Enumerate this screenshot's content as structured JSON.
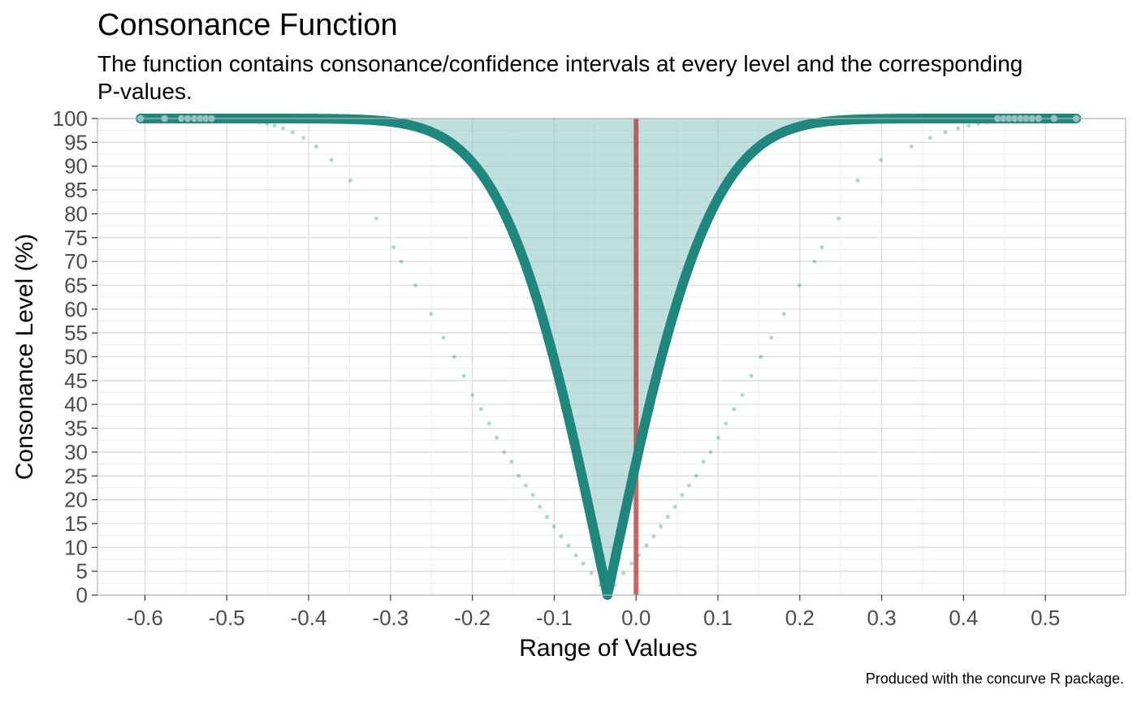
{
  "title": "Consonance Function",
  "subtitle": "The function contains consonance/confidence intervals at every level and the corresponding P-values.",
  "caption": "Produced with the concurve R package.",
  "colors": {
    "curve": "#20877f",
    "fill": "#8cc7c3",
    "null_line": "#b03a3a",
    "grid_major": "#d9d9d9",
    "grid_minor": "#ececec",
    "panel_border": "#b3b3b3",
    "tick_text": "#4d4d4d"
  },
  "chart_data": {
    "type": "line",
    "xlabel": "Range of Values",
    "ylabel": "Consonance Level (%)",
    "xlim": [
      -0.658,
      0.598
    ],
    "ylim": [
      0,
      100
    ],
    "x_ticks": [
      -0.6,
      -0.5,
      -0.4,
      -0.3,
      -0.2,
      -0.1,
      0.0,
      0.1,
      0.2,
      0.3,
      0.4,
      0.5
    ],
    "x_tick_labels": [
      "-0.6",
      "-0.5",
      "-0.4",
      "-0.3",
      "-0.2",
      "-0.1",
      "0.0",
      "0.1",
      "0.2",
      "0.3",
      "0.4",
      "0.5"
    ],
    "y_ticks": [
      0,
      5,
      10,
      15,
      20,
      25,
      30,
      35,
      40,
      45,
      50,
      55,
      60,
      65,
      70,
      75,
      80,
      85,
      90,
      95,
      100
    ],
    "y_tick_labels": [
      "0",
      "5",
      "10",
      "15",
      "20",
      "25",
      "30",
      "35",
      "40",
      "45",
      "50",
      "55",
      "60",
      "65",
      "70",
      "75",
      "80",
      "85",
      "90",
      "95",
      "100"
    ],
    "grid": true,
    "null_line_x": 0.0,
    "point_estimate": -0.035,
    "curve_model": {
      "type": "normal_interval",
      "se": 0.098
    },
    "series": [
      {
        "x": [
          -0.6053,
          -0.576,
          -0.5555,
          -0.5476,
          -0.5395,
          -0.5326,
          -0.5257,
          -0.5187,
          -0.5117,
          -0.5046,
          -0.4976,
          -0.4906,
          -0.4834,
          -0.4763,
          -0.4689,
          -0.4603,
          -0.4513,
          -0.4416,
          -0.4311,
          -0.4194,
          -0.4063,
          -0.3908,
          -0.3723,
          -0.3491,
          -0.3174,
          -0.2961,
          -0.2869,
          -0.2695,
          -0.2504,
          -0.2353,
          -0.2223,
          -0.2106,
          -0.1998,
          -0.1895,
          -0.1797,
          -0.1703,
          -0.1611,
          -0.1522,
          -0.1434,
          -0.1347,
          -0.1261,
          -0.1175,
          -0.1089,
          -0.1003,
          -0.0915,
          -0.0827,
          -0.0736,
          -0.0644,
          -0.0546,
          -0.0439,
          -0.035,
          -0.0261,
          -0.0154,
          -0.0056,
          0.0036,
          0.0127,
          0.0215,
          0.0303,
          0.0389,
          0.0475,
          0.0561,
          0.0647,
          0.0734,
          0.0822,
          0.0911,
          0.1003,
          0.1097,
          0.1195,
          0.1298,
          0.1406,
          0.1523,
          0.1653,
          0.1804,
          0.1995,
          0.2181,
          0.2269,
          0.2474,
          0.2708,
          0.2991,
          0.3363,
          0.3592,
          0.3778,
          0.3932,
          0.4063,
          0.4179,
          0.4283,
          0.4379,
          0.4466,
          0.455,
          0.4632,
          0.4704,
          0.4775,
          0.4845,
          0.4916,
          0.4986,
          0.5106,
          0.5377
        ],
        "y": [
          100.0,
          99.99,
          99.97,
          99.96,
          99.95,
          99.93,
          99.91,
          99.88,
          99.85,
          99.81,
          99.75,
          99.68,
          99.6,
          99.5,
          99.37,
          99.17,
          98.89,
          98.5,
          97.94,
          97.13,
          95.94,
          94.12,
          91.3,
          87.0,
          79.0,
          73.0,
          70.0,
          65.0,
          59.0,
          54.0,
          50.0,
          46.0,
          42.0,
          39.0,
          36.0,
          33.0,
          30.0,
          28.0,
          25.0,
          23.0,
          21.0,
          18.5,
          16.4,
          14.4,
          12.3,
          10.4,
          8.3,
          6.6,
          4.6,
          2.1,
          0.0,
          2.1,
          4.6,
          6.6,
          8.3,
          10.4,
          12.3,
          14.4,
          16.4,
          18.5,
          21.0,
          23.0,
          25.0,
          28.0,
          30.0,
          33.0,
          36.0,
          39.0,
          42.0,
          46.0,
          50.0,
          54.0,
          59.0,
          65.0,
          70.0,
          73.0,
          79.0,
          87.0,
          91.3,
          94.12,
          95.94,
          97.13,
          97.94,
          98.5,
          98.89,
          99.17,
          99.37,
          99.5,
          99.6,
          99.68,
          99.75,
          99.81,
          99.85,
          99.88,
          99.91,
          99.95,
          100.0
        ]
      }
    ],
    "top_points_x": [
      -0.6053,
      -0.576,
      -0.5555,
      -0.5476,
      -0.5395,
      -0.5326,
      -0.5257,
      -0.5187,
      0.4416,
      0.4486,
      0.4556,
      0.4626,
      0.4696,
      0.4766,
      0.4836,
      0.4916,
      0.5106,
      0.5377
    ]
  }
}
